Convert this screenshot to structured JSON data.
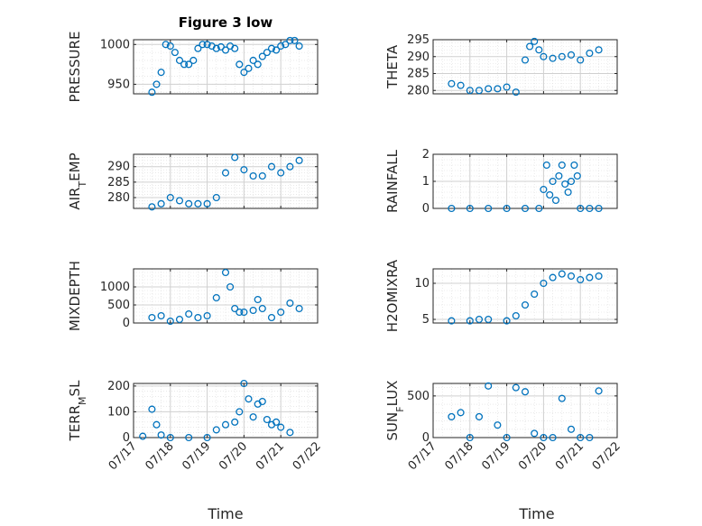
{
  "figure": {
    "title": "Figure 3 low",
    "marker_color": "#0072BD"
  },
  "chart_data": [
    {
      "type": "scatter",
      "title": "Figure 3 low",
      "ylabel": "PRESSURE",
      "xlim": [
        "07/17",
        "07/22"
      ],
      "ylim": [
        938,
        1006
      ],
      "yticks": [
        950,
        1000
      ],
      "x": [
        "07/17 12:00",
        "07/17 15:00",
        "07/17 18:00",
        "07/17 21:00",
        "07/18 00:00",
        "07/18 03:00",
        "07/18 06:00",
        "07/18 09:00",
        "07/18 12:00",
        "07/18 15:00",
        "07/18 18:00",
        "07/18 21:00",
        "07/19 00:00",
        "07/19 03:00",
        "07/19 06:00",
        "07/19 09:00",
        "07/19 12:00",
        "07/19 15:00",
        "07/19 18:00",
        "07/19 21:00",
        "07/20 00:00",
        "07/20 03:00",
        "07/20 06:00",
        "07/20 09:00",
        "07/20 12:00",
        "07/20 15:00",
        "07/20 18:00",
        "07/20 21:00",
        "07/21 00:00",
        "07/21 03:00",
        "07/21 06:00",
        "07/21 09:00",
        "07/21 12:00"
      ],
      "y": [
        940,
        950,
        965,
        1000,
        998,
        990,
        980,
        975,
        975,
        980,
        995,
        1000,
        1000,
        998,
        995,
        997,
        993,
        998,
        995,
        975,
        965,
        970,
        980,
        975,
        985,
        990,
        995,
        993,
        998,
        1000,
        1005,
        1005,
        998
      ]
    },
    {
      "type": "scatter",
      "ylabel": "THETA",
      "xlim": [
        "07/17",
        "07/22"
      ],
      "ylim": [
        279,
        295
      ],
      "yticks": [
        280,
        285,
        290,
        295
      ],
      "x": [
        "07/17 12:00",
        "07/17 18:00",
        "07/18 00:00",
        "07/18 06:00",
        "07/18 12:00",
        "07/18 18:00",
        "07/19 00:00",
        "07/19 06:00",
        "07/19 12:00",
        "07/19 15:00",
        "07/19 18:00",
        "07/19 21:00",
        "07/20 00:00",
        "07/20 06:00",
        "07/20 12:00",
        "07/20 18:00",
        "07/21 00:00",
        "07/21 06:00",
        "07/21 12:00"
      ],
      "y": [
        282,
        281.5,
        280,
        280,
        280.5,
        280.5,
        281,
        279.5,
        289,
        293,
        294.5,
        292,
        290,
        289.5,
        290,
        290.5,
        289,
        291,
        292
      ]
    },
    {
      "type": "scatter",
      "ylabel": "AIR_TEMP",
      "xlim": [
        "07/17",
        "07/22"
      ],
      "ylim": [
        276.5,
        294
      ],
      "yticks": [
        280,
        285,
        290
      ],
      "x": [
        "07/17 12:00",
        "07/17 18:00",
        "07/18 00:00",
        "07/18 06:00",
        "07/18 12:00",
        "07/18 18:00",
        "07/19 00:00",
        "07/19 06:00",
        "07/19 12:00",
        "07/19 18:00",
        "07/20 00:00",
        "07/20 06:00",
        "07/20 12:00",
        "07/20 18:00",
        "07/21 00:00",
        "07/21 06:00",
        "07/21 12:00"
      ],
      "y": [
        277,
        278,
        280,
        279,
        278,
        278,
        278,
        280,
        288,
        293,
        289,
        287,
        287,
        290,
        288,
        290,
        292
      ]
    },
    {
      "type": "scatter",
      "ylabel": "RAINFALL",
      "xlim": [
        "07/17",
        "07/22"
      ],
      "ylim": [
        0,
        2
      ],
      "yticks": [
        0,
        1,
        2
      ],
      "x": [
        "07/17 12:00",
        "07/18 00:00",
        "07/18 12:00",
        "07/19 00:00",
        "07/19 12:00",
        "07/19 21:00",
        "07/20 00:00",
        "07/20 02:00",
        "07/20 04:00",
        "07/20 06:00",
        "07/20 08:00",
        "07/20 10:00",
        "07/20 12:00",
        "07/20 14:00",
        "07/20 16:00",
        "07/20 18:00",
        "07/20 20:00",
        "07/20 22:00",
        "07/21 00:00",
        "07/21 06:00",
        "07/21 12:00"
      ],
      "y": [
        0,
        0,
        0,
        0,
        0,
        0,
        0.7,
        1.6,
        0.5,
        1.0,
        0.3,
        1.2,
        1.6,
        0.9,
        0.6,
        1.0,
        1.6,
        1.2,
        0,
        0,
        0
      ]
    },
    {
      "type": "scatter",
      "ylabel": "MIXDEPTH",
      "xlim": [
        "07/17",
        "07/22"
      ],
      "ylim": [
        0,
        1500
      ],
      "yticks": [
        0,
        500,
        1000
      ],
      "x": [
        "07/17 12:00",
        "07/17 18:00",
        "07/18 00:00",
        "07/18 06:00",
        "07/18 12:00",
        "07/18 18:00",
        "07/19 00:00",
        "07/19 06:00",
        "07/19 12:00",
        "07/19 15:00",
        "07/19 18:00",
        "07/19 21:00",
        "07/20 00:00",
        "07/20 06:00",
        "07/20 09:00",
        "07/20 12:00",
        "07/20 18:00",
        "07/21 00:00",
        "07/21 06:00",
        "07/21 12:00"
      ],
      "y": [
        150,
        200,
        50,
        100,
        250,
        150,
        200,
        700,
        1400,
        1000,
        400,
        300,
        300,
        350,
        650,
        400,
        150,
        300,
        550,
        400
      ]
    },
    {
      "type": "scatter",
      "ylabel": "H2OMIXRA",
      "xlim": [
        "07/17",
        "07/22"
      ],
      "ylim": [
        4.5,
        12
      ],
      "yticks": [
        5,
        10
      ],
      "x": [
        "07/17 12:00",
        "07/18 00:00",
        "07/18 06:00",
        "07/18 12:00",
        "07/19 00:00",
        "07/19 06:00",
        "07/19 12:00",
        "07/19 18:00",
        "07/20 00:00",
        "07/20 06:00",
        "07/20 12:00",
        "07/20 18:00",
        "07/21 00:00",
        "07/21 06:00",
        "07/21 12:00"
      ],
      "y": [
        4.8,
        4.8,
        5.0,
        5.0,
        4.8,
        5.5,
        7.0,
        8.5,
        10.0,
        10.8,
        11.3,
        11.0,
        10.5,
        10.8,
        11.0
      ]
    },
    {
      "type": "scatter",
      "ylabel": "TERR_MSL",
      "xlim": [
        "07/17",
        "07/22"
      ],
      "ylim": [
        0,
        210
      ],
      "yticks": [
        0,
        100,
        200
      ],
      "x": [
        "07/17 06:00",
        "07/17 12:00",
        "07/17 15:00",
        "07/17 18:00",
        "07/18 00:00",
        "07/18 12:00",
        "07/19 00:00",
        "07/19 06:00",
        "07/19 12:00",
        "07/19 18:00",
        "07/19 21:00",
        "07/20 00:00",
        "07/20 03:00",
        "07/20 06:00",
        "07/20 09:00",
        "07/20 12:00",
        "07/20 15:00",
        "07/20 18:00",
        "07/20 21:00",
        "07/21 00:00",
        "07/21 06:00"
      ],
      "y": [
        5,
        110,
        50,
        10,
        0,
        0,
        0,
        30,
        50,
        60,
        100,
        210,
        150,
        80,
        130,
        140,
        70,
        50,
        60,
        40,
        20
      ]
    },
    {
      "type": "scatter",
      "ylabel": "SUN_FLUX",
      "xlim": [
        "07/17",
        "07/22"
      ],
      "ylim": [
        0,
        650
      ],
      "yticks": [
        0,
        500
      ],
      "x": [
        "07/17 12:00",
        "07/17 18:00",
        "07/18 00:00",
        "07/18 06:00",
        "07/18 12:00",
        "07/18 18:00",
        "07/19 00:00",
        "07/19 06:00",
        "07/19 12:00",
        "07/19 18:00",
        "07/20 00:00",
        "07/20 06:00",
        "07/20 12:00",
        "07/20 18:00",
        "07/21 00:00",
        "07/21 06:00",
        "07/21 12:00"
      ],
      "y": [
        250,
        300,
        0,
        250,
        620,
        150,
        0,
        600,
        550,
        50,
        0,
        0,
        470,
        100,
        0,
        0,
        560
      ]
    }
  ],
  "axes_common": {
    "xticks": [
      "07/17",
      "07/18",
      "07/19",
      "07/20",
      "07/21",
      "07/22"
    ],
    "xlabel": "Time"
  }
}
